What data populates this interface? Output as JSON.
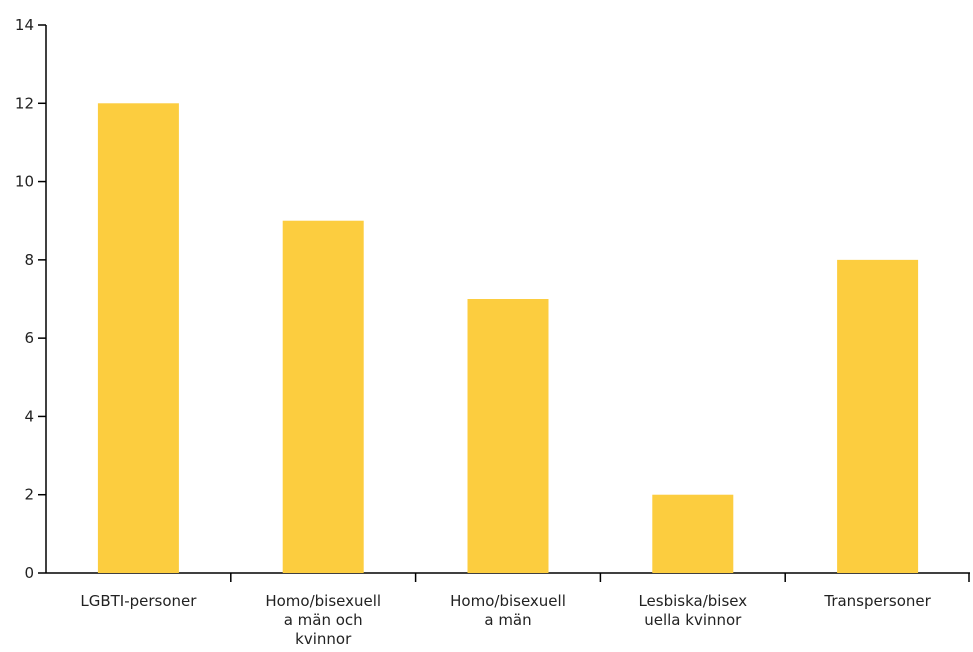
{
  "chart_data": {
    "type": "bar",
    "title": "",
    "xlabel": "",
    "ylabel": "",
    "categories": [
      [
        "LGBTI-personer"
      ],
      [
        "Homo/bisexuell",
        "a män och",
        "kvinnor"
      ],
      [
        "Homo/bisexuell",
        "a män"
      ],
      [
        "Lesbiska/bisex",
        "uella kvinnor"
      ],
      [
        "Transpersoner"
      ]
    ],
    "values": [
      12,
      9,
      7,
      2,
      8
    ],
    "ylim": [
      0,
      14
    ],
    "yticks": [
      0,
      2,
      4,
      6,
      8,
      10,
      12,
      14
    ],
    "bar_color": "#FCCD3F",
    "grid": false,
    "legend": "none"
  }
}
